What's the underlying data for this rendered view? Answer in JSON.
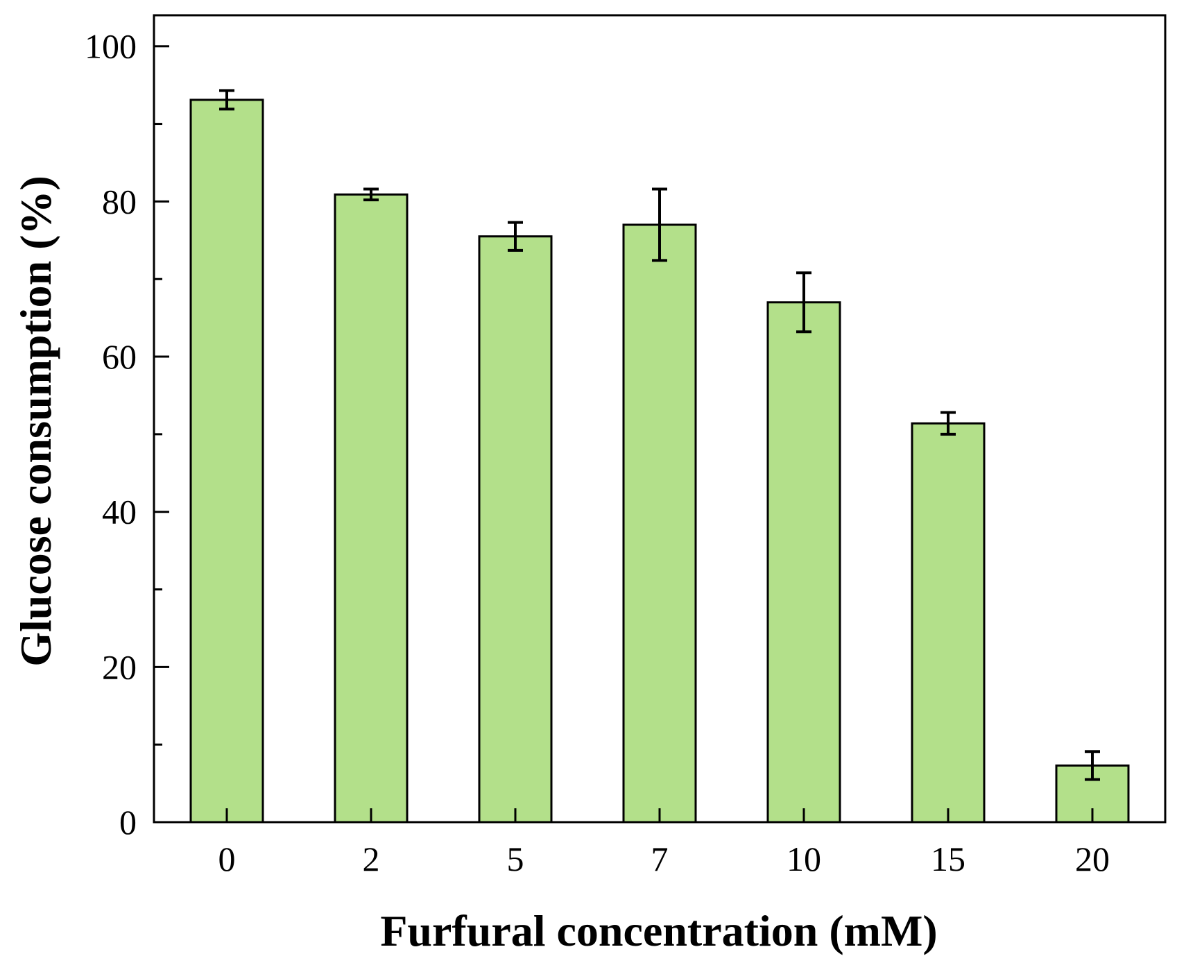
{
  "chart_data": {
    "type": "bar",
    "title": "",
    "xlabel": "Furfural concentration (mM)",
    "ylabel": "Glucose consumption (%)",
    "categories": [
      "0",
      "2",
      "5",
      "7",
      "10",
      "15",
      "20"
    ],
    "values": [
      93.1,
      80.9,
      75.5,
      77.0,
      67.0,
      51.4,
      7.3
    ],
    "errors": [
      1.2,
      0.7,
      1.8,
      4.6,
      3.8,
      1.4,
      1.8
    ],
    "ylim": [
      0,
      104
    ],
    "yticks": [
      0,
      20,
      40,
      60,
      80,
      100
    ],
    "yticks_minor": [
      10,
      30,
      50,
      70,
      90
    ],
    "grid": false,
    "legend": "none",
    "colors": {
      "bar_fill": "#b3e08a",
      "bar_stroke": "#000000",
      "error_bar": "#000000",
      "axis": "#000000"
    }
  }
}
